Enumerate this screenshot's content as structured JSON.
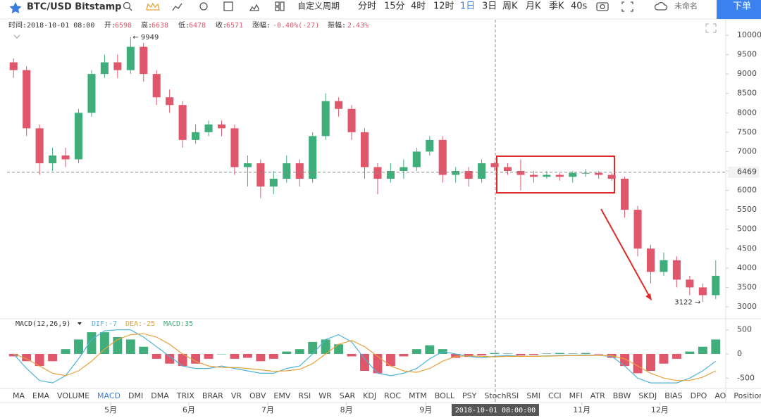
{
  "toolbar": {
    "symbol": "BTC/USD Bitstamp",
    "custom_period": "自定义周期",
    "periods": [
      "分时",
      "15分",
      "4时",
      "12时",
      "1日",
      "3日",
      "周K",
      "月K",
      "季K",
      "40s"
    ],
    "active_period": 4,
    "layout_name": "未命名",
    "order_button": "下单"
  },
  "info_bar": {
    "time": "时间:2018-10-01 08:00",
    "fields": [
      {
        "label": "开:",
        "value": "6598"
      },
      {
        "label": "高:",
        "value": "6638"
      },
      {
        "label": "低:",
        "value": "6478"
      },
      {
        "label": "收:",
        "value": "6571"
      },
      {
        "label": "涨幅:",
        "value": "-0.40%(-27)"
      },
      {
        "label": "振幅:",
        "value": "2.43%"
      }
    ]
  },
  "indicator_tabs": {
    "items": [
      "MA",
      "EMA",
      "VOLUME",
      "MACD",
      "DMI",
      "DMA",
      "TRIX",
      "BRAR",
      "VR",
      "OBV",
      "EMV",
      "RSI",
      "WR",
      "SAR",
      "KDJ",
      "ROC",
      "MTM",
      "BOLL",
      "PSY",
      "StochRSI",
      "SMI",
      "CCI",
      "MFI",
      "ATR",
      "BBW",
      "SKDJ",
      "BIAS",
      "DPO",
      "AO",
      "Position"
    ],
    "active": 3
  },
  "chart_data": [
    {
      "type": "candlestick",
      "up_color": "#3fae7a",
      "down_color": "#e0566a",
      "open": [
        9300,
        9100,
        7600,
        6700,
        6900,
        6800,
        8000,
        9000,
        9300,
        9100,
        9700,
        9000,
        8400,
        8200,
        7300,
        7500,
        7700,
        7600,
        6600,
        6700,
        6100,
        6300,
        6700,
        6300,
        7400,
        8300,
        8100,
        7500,
        6600,
        6300,
        6500,
        6600,
        7000,
        7300,
        6400,
        6500,
        6300,
        6700,
        6600,
        6500,
        6400,
        6350,
        6400,
        6350,
        6450,
        6450,
        6400,
        6300,
        5500,
        4500,
        3900,
        4200,
        3700,
        3500,
        3300
      ],
      "high": [
        9400,
        9200,
        7700,
        7100,
        7100,
        8100,
        9100,
        9500,
        9500,
        9949,
        9800,
        9100,
        8600,
        8300,
        7700,
        7800,
        7800,
        7700,
        6900,
        6800,
        6500,
        6900,
        6800,
        7500,
        8500,
        8400,
        8200,
        7600,
        6700,
        6700,
        6800,
        7100,
        7400,
        7400,
        6600,
        6600,
        6800,
        6750,
        6700,
        6800,
        6500,
        6500,
        6450,
        6500,
        6550,
        6500,
        6450,
        6350,
        5600,
        4600,
        4400,
        4300,
        3800,
        3600,
        4200
      ],
      "low": [
        8900,
        7400,
        6400,
        6500,
        6600,
        6700,
        7900,
        8900,
        8900,
        9000,
        8800,
        8200,
        8000,
        7100,
        7200,
        7400,
        7400,
        6400,
        6100,
        5800,
        5900,
        6200,
        6100,
        6200,
        7300,
        7900,
        7300,
        6300,
        5900,
        6200,
        6300,
        6500,
        6900,
        6200,
        6200,
        6100,
        6200,
        6500,
        6400,
        6000,
        6200,
        6300,
        6250,
        6200,
        6350,
        6300,
        6250,
        5300,
        4300,
        3600,
        3800,
        3500,
        3300,
        3122,
        3200
      ],
      "close": [
        9100,
        7600,
        6700,
        6900,
        6800,
        8000,
        9000,
        9300,
        9100,
        9700,
        9000,
        8400,
        8200,
        7300,
        7500,
        7700,
        7600,
        6600,
        6700,
        6100,
        6300,
        6700,
        6300,
        7400,
        8300,
        8100,
        7500,
        6600,
        6300,
        6500,
        6600,
        7000,
        7300,
        6400,
        6500,
        6300,
        6700,
        6600,
        6500,
        6400,
        6350,
        6400,
        6350,
        6450,
        6450,
        6400,
        6300,
        5500,
        4500,
        3900,
        4200,
        3700,
        3500,
        3300,
        3800
      ],
      "xlim": [
        0,
        55
      ],
      "xticks": [
        {
          "value": 7.97,
          "label": "5月"
        },
        {
          "value": 13.98,
          "label": "6月"
        },
        {
          "value": 20.05,
          "label": "7月"
        },
        {
          "value": 26.1,
          "label": "8月"
        },
        {
          "value": 32.2,
          "label": "9月"
        },
        {
          "value": 44.2,
          "label": "11月"
        },
        {
          "value": 50.2,
          "label": "12月"
        }
      ],
      "ylim": [
        2746,
        10181
      ],
      "yticks": [
        3000,
        3500,
        4000,
        4500,
        5000,
        5500,
        6000,
        6500,
        7000,
        7500,
        8000,
        8500,
        9000,
        9500,
        10000
      ],
      "annotations": [
        {
          "text": "← 9949",
          "value": 9949
        },
        {
          "text": "3122 →",
          "value": 3122
        }
      ],
      "last_price": 6469,
      "crosshair": {
        "value": 37.55,
        "label": "2018-10-01 08:00:00"
      }
    },
    {
      "type": "macd",
      "title": "MACD(12,26,9)",
      "series": [
        {
          "name": "DIF:-7",
          "color": "#4fb3d9",
          "values": [
            0,
            -300,
            -550,
            -600,
            -450,
            -100,
            300,
            480,
            500,
            500,
            350,
            150,
            -50,
            -250,
            -300,
            -300,
            -250,
            -300,
            -350,
            -400,
            -400,
            -300,
            -250,
            0,
            300,
            400,
            250,
            -100,
            -400,
            -450,
            -400,
            -300,
            -100,
            50,
            0,
            -50,
            -80,
            -50,
            -30,
            -50,
            -50,
            -40,
            -30,
            -30,
            -20,
            -30,
            -50,
            -250,
            -500,
            -600,
            -600,
            -600,
            -500,
            -350,
            -150
          ]
        },
        {
          "name": "DEA:-25",
          "color": "#e6a23c",
          "values": [
            0,
            -100,
            -250,
            -400,
            -450,
            -350,
            -150,
            100,
            300,
            400,
            420,
            350,
            200,
            0,
            -150,
            -250,
            -280,
            -280,
            -300,
            -330,
            -360,
            -350,
            -320,
            -200,
            0,
            200,
            280,
            150,
            -50,
            -250,
            -350,
            -380,
            -300,
            -150,
            -50,
            -40,
            -50,
            -60,
            -50,
            -50,
            -50,
            -45,
            -40,
            -35,
            -30,
            -30,
            -35,
            -100,
            -250,
            -400,
            -500,
            -550,
            -550,
            -480,
            -350
          ]
        },
        {
          "name": "MACD:35",
          "color": "#3fae7a",
          "negative_color": "#e0566a",
          "values": [
            -50,
            -150,
            -250,
            -150,
            100,
            300,
            450,
            450,
            350,
            300,
            150,
            -100,
            -200,
            -250,
            -200,
            -100,
            0,
            -100,
            -80,
            -150,
            -100,
            50,
            100,
            250,
            300,
            200,
            -50,
            -350,
            -400,
            -250,
            -50,
            100,
            180,
            100,
            -80,
            -60,
            -30,
            20,
            10,
            -30,
            -20,
            10,
            20,
            10,
            20,
            -10,
            -80,
            -250,
            -400,
            -350,
            -200,
            -100,
            50,
            150,
            300
          ]
        }
      ],
      "xlim": [
        0,
        55
      ],
      "ylim": [
        -700,
        700
      ],
      "yticks": [
        -500,
        0,
        500
      ]
    }
  ]
}
